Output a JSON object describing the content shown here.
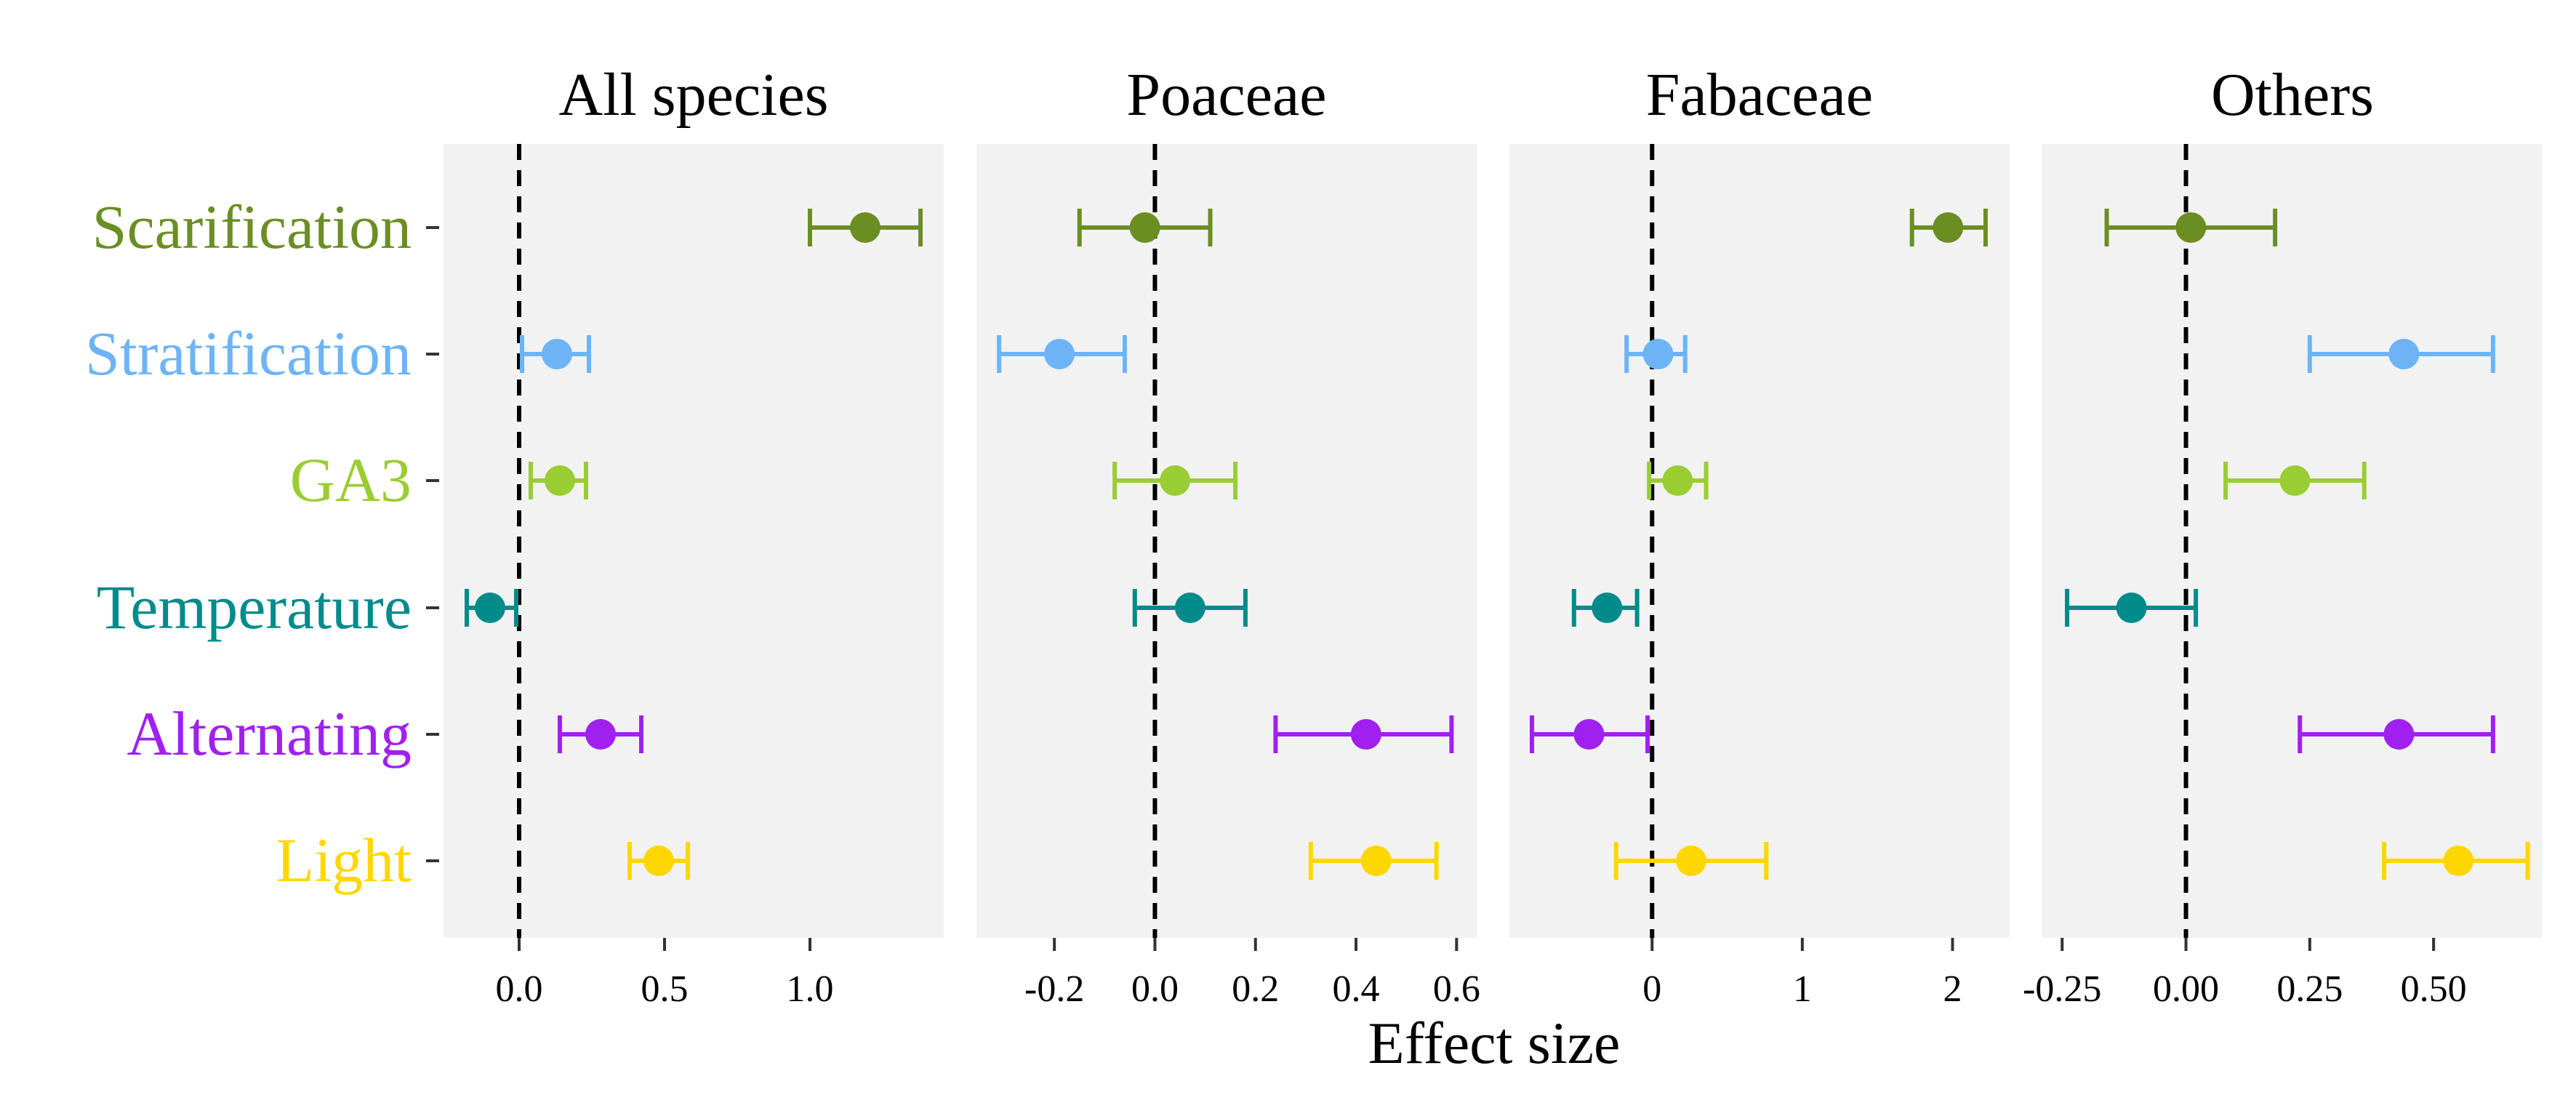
{
  "chart_data": {
    "type": "forest",
    "xlabel": "Effect size",
    "treatments": [
      "Scarification",
      "Stratification",
      "GA3",
      "Temperature",
      "Alternating",
      "Light"
    ],
    "treatment_colors": {
      "Scarification": "#6B8E23",
      "Stratification": "#6CB4F5",
      "GA3": "#9ACD32",
      "Temperature": "#008B8B",
      "Alternating": "#A020F0",
      "Light": "#FFD700"
    },
    "reference_line_x": 0,
    "grid": false,
    "panel_background": "#F2F2F2",
    "panels": [
      {
        "title": "All species",
        "xlim": [
          -0.26,
          1.46
        ],
        "ticks": [
          0.0,
          0.5,
          1.0
        ],
        "tick_labels": [
          "0.0",
          "0.5",
          "1.0"
        ],
        "estimates": [
          {
            "treatment": "Scarification",
            "mean": 1.19,
            "lower": 1.0,
            "upper": 1.38
          },
          {
            "treatment": "Stratification",
            "mean": 0.13,
            "lower": 0.01,
            "upper": 0.24
          },
          {
            "treatment": "GA3",
            "mean": 0.14,
            "lower": 0.04,
            "upper": 0.23
          },
          {
            "treatment": "Temperature",
            "mean": -0.1,
            "lower": -0.18,
            "upper": -0.01
          },
          {
            "treatment": "Alternating",
            "mean": 0.28,
            "lower": 0.14,
            "upper": 0.42
          },
          {
            "treatment": "Light",
            "mean": 0.48,
            "lower": 0.38,
            "upper": 0.58
          }
        ]
      },
      {
        "title": "Poaceae",
        "xlim": [
          -0.355,
          0.64
        ],
        "ticks": [
          -0.2,
          0.0,
          0.2,
          0.4,
          0.6
        ],
        "tick_labels": [
          "-0.2",
          "0.0",
          "0.2",
          "0.4",
          "0.6"
        ],
        "estimates": [
          {
            "treatment": "Scarification",
            "mean": -0.02,
            "lower": -0.15,
            "upper": 0.11
          },
          {
            "treatment": "Stratification",
            "mean": -0.19,
            "lower": -0.31,
            "upper": -0.06
          },
          {
            "treatment": "GA3",
            "mean": 0.04,
            "lower": -0.08,
            "upper": 0.16
          },
          {
            "treatment": "Temperature",
            "mean": 0.07,
            "lower": -0.04,
            "upper": 0.18
          },
          {
            "treatment": "Alternating",
            "mean": 0.42,
            "lower": 0.24,
            "upper": 0.59
          },
          {
            "treatment": "Light",
            "mean": 0.44,
            "lower": 0.31,
            "upper": 0.56
          }
        ]
      },
      {
        "title": "Fabaceae",
        "xlim": [
          -0.95,
          2.38
        ],
        "ticks": [
          0,
          1,
          2
        ],
        "tick_labels": [
          "0",
          "1",
          "2"
        ],
        "estimates": [
          {
            "treatment": "Scarification",
            "mean": 1.97,
            "lower": 1.73,
            "upper": 2.22
          },
          {
            "treatment": "Stratification",
            "mean": 0.04,
            "lower": -0.17,
            "upper": 0.22
          },
          {
            "treatment": "GA3",
            "mean": 0.17,
            "lower": -0.02,
            "upper": 0.36
          },
          {
            "treatment": "Temperature",
            "mean": -0.3,
            "lower": -0.52,
            "upper": -0.1
          },
          {
            "treatment": "Alternating",
            "mean": -0.42,
            "lower": -0.8,
            "upper": -0.03
          },
          {
            "treatment": "Light",
            "mean": 0.26,
            "lower": -0.24,
            "upper": 0.76
          }
        ]
      },
      {
        "title": "Others",
        "xlim": [
          -0.29,
          0.72
        ],
        "ticks": [
          -0.25,
          0.0,
          0.25,
          0.5
        ],
        "tick_labels": [
          "-0.25",
          "0.00",
          "0.25",
          "0.50"
        ],
        "estimates": [
          {
            "treatment": "Scarification",
            "mean": 0.01,
            "lower": -0.16,
            "upper": 0.18
          },
          {
            "treatment": "Stratification",
            "mean": 0.44,
            "lower": 0.25,
            "upper": 0.62
          },
          {
            "treatment": "GA3",
            "mean": 0.22,
            "lower": 0.08,
            "upper": 0.36
          },
          {
            "treatment": "Temperature",
            "mean": -0.11,
            "lower": -0.24,
            "upper": 0.02
          },
          {
            "treatment": "Alternating",
            "mean": 0.43,
            "lower": 0.23,
            "upper": 0.62
          },
          {
            "treatment": "Light",
            "mean": 0.55,
            "lower": 0.4,
            "upper": 0.69
          }
        ]
      }
    ]
  }
}
